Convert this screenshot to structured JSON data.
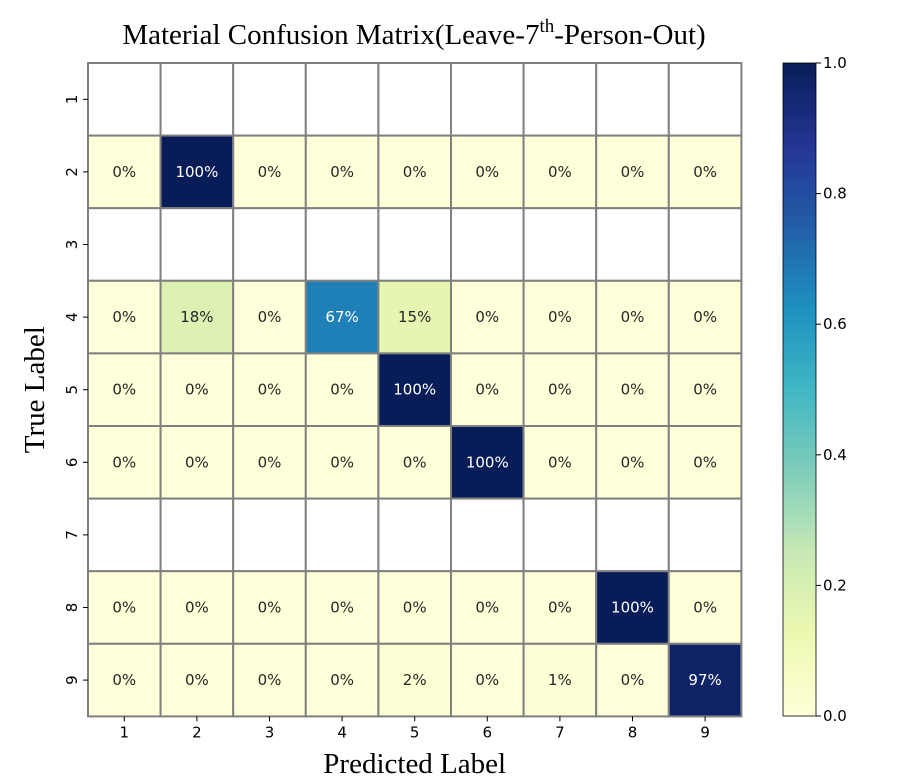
{
  "chart_data": {
    "type": "heatmap",
    "title": {
      "prefix": "Material Confusion Matrix(Leave-7",
      "superscript": "th",
      "suffix": "-Person-Out)"
    },
    "xlabel": "Predicted Label",
    "ylabel": "True Label",
    "x_categories": [
      "1",
      "2",
      "3",
      "4",
      "5",
      "6",
      "7",
      "8",
      "9"
    ],
    "y_categories": [
      "1",
      "2",
      "3",
      "4",
      "5",
      "6",
      "7",
      "8",
      "9"
    ],
    "values": [
      [
        null,
        null,
        null,
        null,
        null,
        null,
        null,
        null,
        null
      ],
      [
        0,
        1.0,
        0,
        0,
        0,
        0,
        0,
        0,
        0
      ],
      [
        null,
        null,
        null,
        null,
        null,
        null,
        null,
        null,
        null
      ],
      [
        0,
        0.18,
        0,
        0.67,
        0.15,
        0,
        0,
        0,
        0
      ],
      [
        0,
        0,
        0,
        0,
        1.0,
        0,
        0,
        0,
        0
      ],
      [
        0,
        0,
        0,
        0,
        0,
        1.0,
        0,
        0,
        0
      ],
      [
        null,
        null,
        null,
        null,
        null,
        null,
        null,
        null,
        null
      ],
      [
        0,
        0,
        0,
        0,
        0,
        0,
        0,
        1.0,
        0
      ],
      [
        0,
        0,
        0,
        0,
        0.02,
        0,
        0.01,
        0,
        0.97
      ]
    ],
    "annotations": [
      [
        "",
        "",
        "",
        "",
        "",
        "",
        "",
        "",
        ""
      ],
      [
        "0%",
        "100%",
        "0%",
        "0%",
        "0%",
        "0%",
        "0%",
        "0%",
        "0%"
      ],
      [
        "",
        "",
        "",
        "",
        "",
        "",
        "",
        "",
        ""
      ],
      [
        "0%",
        "18%",
        "0%",
        "67%",
        "15%",
        "0%",
        "0%",
        "0%",
        "0%"
      ],
      [
        "0%",
        "0%",
        "0%",
        "0%",
        "100%",
        "0%",
        "0%",
        "0%",
        "0%"
      ],
      [
        "0%",
        "0%",
        "0%",
        "0%",
        "0%",
        "100%",
        "0%",
        "0%",
        "0%"
      ],
      [
        "",
        "",
        "",
        "",
        "",
        "",
        "",
        "",
        ""
      ],
      [
        "0%",
        "0%",
        "0%",
        "0%",
        "0%",
        "0%",
        "0%",
        "100%",
        "0%"
      ],
      [
        "0%",
        "0%",
        "0%",
        "0%",
        "2%",
        "0%",
        "1%",
        "0%",
        "97%"
      ]
    ],
    "colorbar": {
      "colormap": "YlGnBu",
      "range": [
        0,
        1
      ],
      "ticks": [
        0.0,
        0.2,
        0.4,
        0.6,
        0.8,
        1.0
      ],
      "tick_labels": [
        "0.0",
        "0.2",
        "0.4",
        "0.6",
        "0.8",
        "1.0"
      ]
    },
    "colors": {
      "cell_border": "#808080",
      "empty_cell": "#ffffff",
      "text_dark": "#262626",
      "text_light": "#ffffff"
    }
  }
}
